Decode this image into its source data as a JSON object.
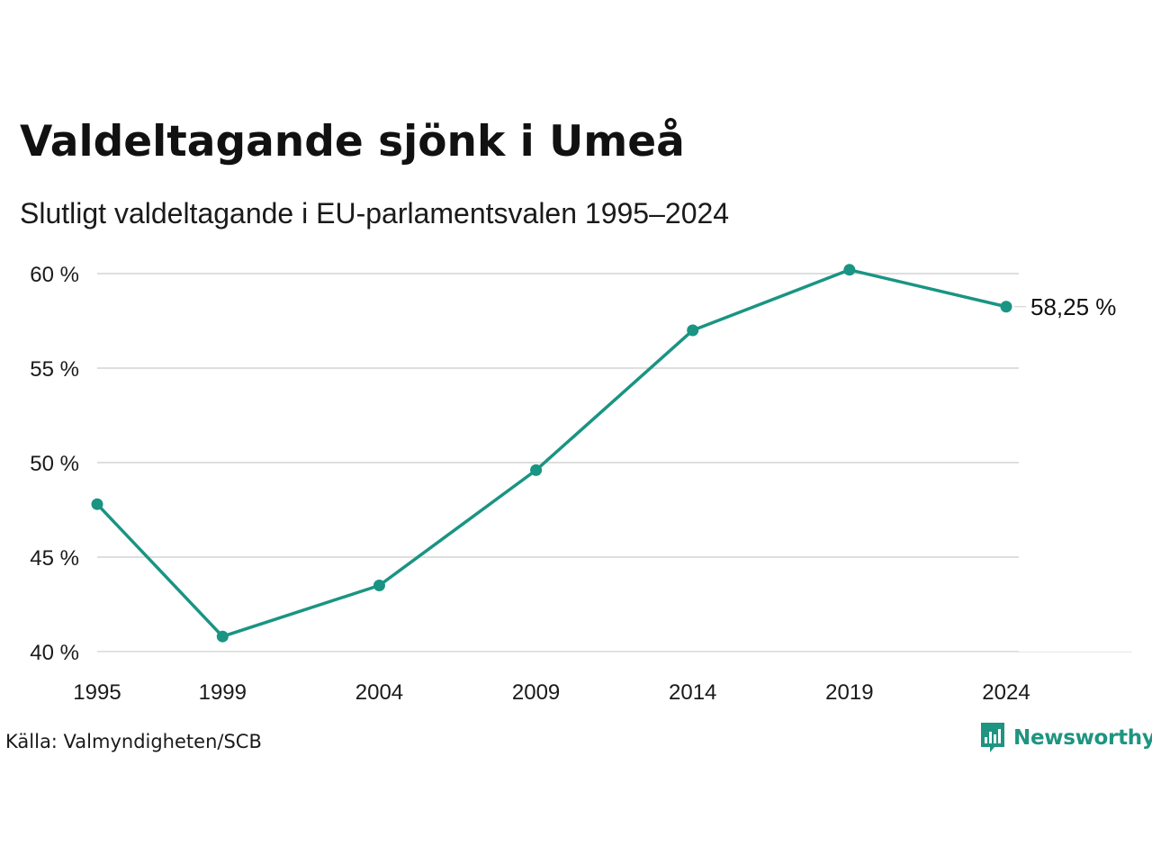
{
  "header": {
    "title": "Valdeltagande sjönk i Umeå",
    "subtitle": "Slutligt valdeltagande i EU-parlamentsvalen 1995–2024"
  },
  "footer": {
    "source": "Källa: Valmyndigheten/SCB",
    "brand": "Newsworthy",
    "brand_icon": "bar-chart-bubble-icon"
  },
  "colors": {
    "line": "#1a9483",
    "grid": "#dedede",
    "brand": "#1f9481",
    "text": "#111111"
  },
  "chart_data": {
    "type": "line",
    "x": [
      1995,
      1999,
      2004,
      2009,
      2014,
      2019,
      2024
    ],
    "xticks": [
      "1995",
      "1999",
      "2004",
      "2009",
      "2014",
      "2019",
      "2024"
    ],
    "series": [
      {
        "values": [
          47.8,
          40.8,
          43.5,
          49.6,
          57.0,
          60.2,
          58.25
        ]
      }
    ],
    "yticks": [
      40,
      45,
      50,
      55,
      60
    ],
    "ytick_labels": [
      "40 %",
      "45 %",
      "50 %",
      "55 %",
      "60 %"
    ],
    "ylim": [
      40,
      60
    ],
    "end_label": "58,25 %",
    "grid": true,
    "legend": "none"
  }
}
